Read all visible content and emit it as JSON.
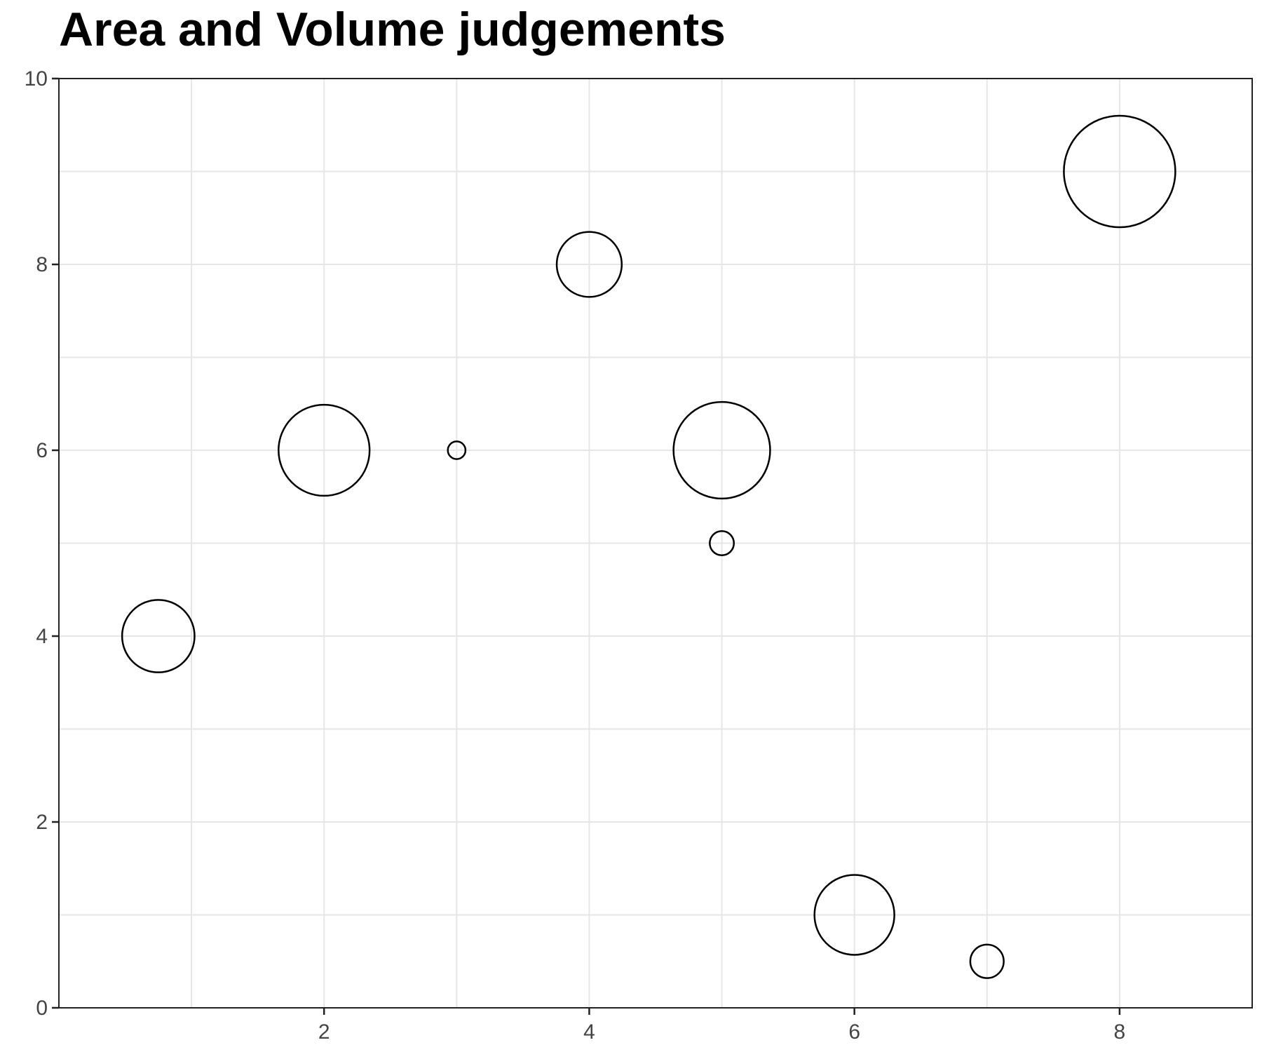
{
  "chart_data": {
    "type": "scatter",
    "title": "Area and Volume judgements",
    "xlabel": "",
    "ylabel": "",
    "xlim": [
      0,
      9
    ],
    "ylim": [
      0,
      10
    ],
    "x_ticks": [
      2,
      4,
      6,
      8
    ],
    "y_ticks": [
      0,
      2,
      4,
      6,
      8,
      10
    ],
    "x_minor_grid": [
      1,
      3,
      5,
      7
    ],
    "y_minor_grid": [
      1,
      3,
      5,
      7,
      9
    ],
    "grid": true,
    "legend": "none",
    "points": [
      {
        "x": 0.75,
        "y": 4.0,
        "size": 0.78
      },
      {
        "x": 2.0,
        "y": 6.0,
        "size": 0.98
      },
      {
        "x": 3.0,
        "y": 6.0,
        "size": 0.19
      },
      {
        "x": 4.0,
        "y": 8.0,
        "size": 0.7
      },
      {
        "x": 5.0,
        "y": 6.0,
        "size": 1.04
      },
      {
        "x": 5.0,
        "y": 5.0,
        "size": 0.26
      },
      {
        "x": 6.0,
        "y": 1.0,
        "size": 0.86
      },
      {
        "x": 7.0,
        "y": 0.5,
        "size": 0.36
      },
      {
        "x": 8.0,
        "y": 9.0,
        "size": 1.2
      }
    ],
    "colors": {
      "stroke": "#000000",
      "grid": "#e6e6e6",
      "axis": "#222222",
      "tick_text": "#444444"
    }
  }
}
